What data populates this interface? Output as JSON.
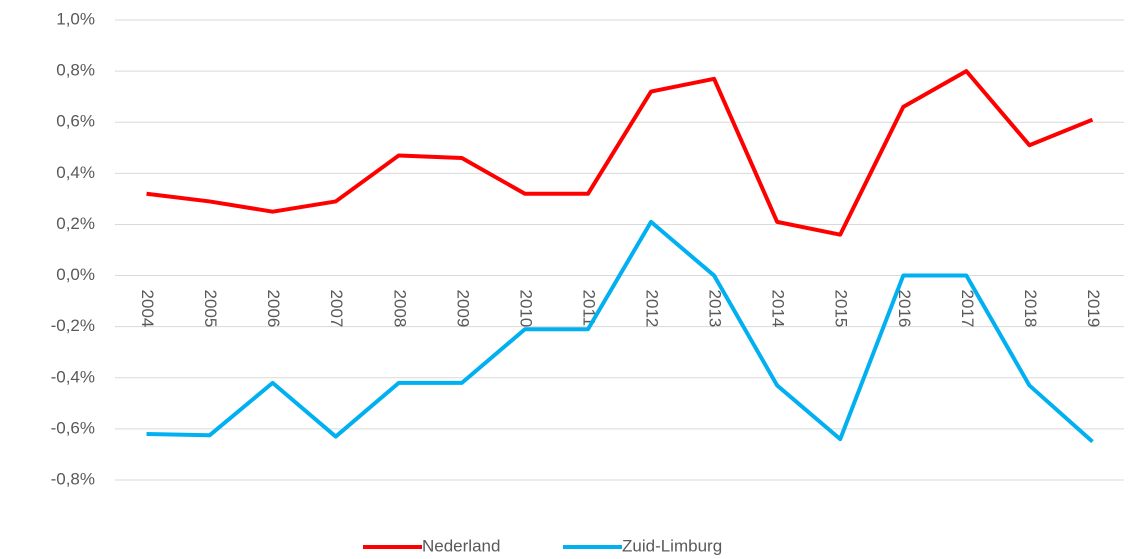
{
  "chart_data": {
    "type": "line",
    "categories": [
      "2004",
      "2005",
      "2006",
      "2007",
      "2008",
      "2009",
      "2010",
      "2011",
      "2012",
      "2013",
      "2014",
      "2015",
      "2016",
      "2017",
      "2018",
      "2019"
    ],
    "series": [
      {
        "name": "Nederland",
        "color": "#ff0000",
        "values": [
          0.32,
          0.29,
          0.25,
          0.29,
          0.47,
          0.46,
          0.32,
          0.32,
          0.72,
          0.77,
          0.21,
          0.16,
          0.66,
          0.8,
          0.51,
          0.61
        ]
      },
      {
        "name": "Zuid-Limburg",
        "color": "#00b0f0",
        "values": [
          -0.62,
          -0.625,
          -0.42,
          -0.63,
          -0.42,
          -0.42,
          -0.21,
          -0.21,
          0.21,
          0.0,
          -0.43,
          -0.64,
          0.0,
          0.0,
          -0.43,
          -0.65
        ]
      }
    ],
    "ylim": [
      -0.8,
      1.0
    ],
    "yticks": [
      {
        "value": -0.8,
        "label": "-0,8%"
      },
      {
        "value": -0.6,
        "label": "-0,6%"
      },
      {
        "value": -0.4,
        "label": "-0,4%"
      },
      {
        "value": -0.2,
        "label": "-0,2%"
      },
      {
        "value": 0.0,
        "label": "0,0%"
      },
      {
        "value": 0.2,
        "label": "0,2%"
      },
      {
        "value": 0.4,
        "label": "0,4%"
      },
      {
        "value": 0.6,
        "label": "0,6%"
      },
      {
        "value": 0.8,
        "label": "0,8%"
      },
      {
        "value": 1.0,
        "label": "1,0%"
      }
    ],
    "grid": true,
    "legend": "bottom"
  }
}
